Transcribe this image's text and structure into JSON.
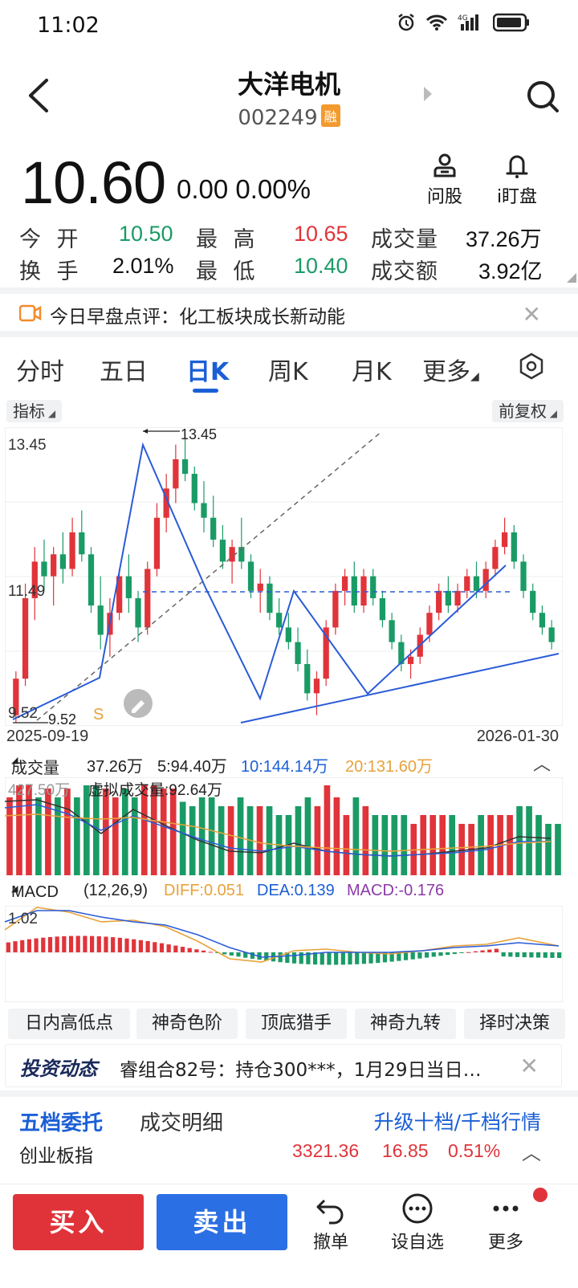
{
  "status": {
    "time": "11:02",
    "network": "4G"
  },
  "header": {
    "title": "大洋电机",
    "code": "002249",
    "badge": "融"
  },
  "quote": {
    "price": "10.60",
    "change": "0.00",
    "change_pct": "0.00%"
  },
  "quick": {
    "ask": "问股",
    "watch": "i盯盘"
  },
  "stats": {
    "open_label": "今 开",
    "open": "10.50",
    "high_label": "最 高",
    "high": "10.65",
    "volume_label": "成交量",
    "volume": "37.26万",
    "turnover_label": "换 手",
    "turnover": "2.01%",
    "low_label": "最 低",
    "low": "10.40",
    "amount_label": "成交额",
    "amount": "3.92亿"
  },
  "news": {
    "text": "今日早盘点评：化工板块成长新动能"
  },
  "tabs": [
    "分时",
    "五日",
    "日K",
    "周K",
    "月K",
    "更多"
  ],
  "chart": {
    "indicator_btn": "指标",
    "adjust_btn": "前复权",
    "high_label": "13.45",
    "high_marker": "13.45",
    "mid_label": "11.49",
    "low_label": "9.52",
    "low_marker": "9.52",
    "signal": "S",
    "start_date": "2025-09-19",
    "end_date": "2026-01-30"
  },
  "volume": {
    "label": "成交量",
    "total": "37.26万",
    "ma5": "5:94.40万",
    "ma10": "10:144.14万",
    "ma20": "20:131.60万",
    "max_label": "427.50万",
    "virtual": "虚拟成交量:92.64万"
  },
  "macd": {
    "label": "MACD",
    "params": "(12,26,9)",
    "diff": "DIFF:0.051",
    "dea": "DEA:0.139",
    "macd": "MACD:-0.176",
    "max_label": "1.02"
  },
  "tools": [
    "日内高低点",
    "神奇色阶",
    "顶底猎手",
    "神奇九转",
    "择时决策"
  ],
  "invest": {
    "logo": "投资动态",
    "text": "睿组合82号：持仓300***，1月29日当日…"
  },
  "orders": {
    "tab1": "五档委托",
    "tab2": "成交明细",
    "link": "升级十档/千档行情"
  },
  "index": {
    "name": "创业板指",
    "value": "3321.36",
    "change": "16.85",
    "pct": "0.51%"
  },
  "bottom": {
    "buy": "买入",
    "sell": "卖出",
    "cancel": "撤单",
    "self_select": "设自选",
    "more": "更多"
  },
  "colors": {
    "up": "#e0343a",
    "down": "#1a9b66",
    "accent": "#1b5fd6"
  },
  "chart_data": {
    "type": "candlestick",
    "x_range": [
      "2025-09-19",
      "2026-01-30"
    ],
    "y_range": [
      9.52,
      13.45
    ],
    "candles": [
      [
        9.6,
        10.2,
        9.5,
        10.1
      ],
      [
        10.1,
        11.4,
        10.0,
        11.2
      ],
      [
        11.2,
        11.9,
        10.9,
        11.7
      ],
      [
        11.7,
        12.0,
        11.3,
        11.5
      ],
      [
        11.5,
        11.9,
        11.1,
        11.8
      ],
      [
        11.8,
        12.1,
        11.4,
        11.6
      ],
      [
        11.6,
        12.3,
        11.5,
        12.1
      ],
      [
        12.1,
        12.4,
        11.7,
        11.8
      ],
      [
        11.8,
        11.9,
        11.0,
        11.1
      ],
      [
        11.1,
        11.5,
        10.5,
        10.7
      ],
      [
        10.7,
        11.2,
        10.4,
        11.0
      ],
      [
        11.0,
        11.6,
        10.9,
        11.5
      ],
      [
        11.5,
        11.8,
        11.0,
        11.2
      ],
      [
        11.2,
        11.3,
        10.6,
        10.8
      ],
      [
        10.8,
        11.7,
        10.7,
        11.6
      ],
      [
        11.6,
        12.5,
        11.5,
        12.3
      ],
      [
        12.3,
        12.9,
        12.1,
        12.7
      ],
      [
        12.7,
        13.3,
        12.5,
        13.1
      ],
      [
        13.1,
        13.45,
        12.8,
        12.9
      ],
      [
        12.9,
        13.0,
        12.4,
        12.5
      ],
      [
        12.5,
        12.8,
        12.1,
        12.3
      ],
      [
        12.3,
        12.6,
        11.9,
        12.0
      ],
      [
        12.0,
        12.2,
        11.6,
        11.7
      ],
      [
        11.7,
        12.0,
        11.4,
        11.9
      ],
      [
        11.9,
        12.3,
        11.6,
        11.7
      ],
      [
        11.7,
        11.8,
        11.2,
        11.3
      ],
      [
        11.3,
        11.6,
        11.0,
        11.4
      ],
      [
        11.4,
        11.5,
        10.9,
        11.0
      ],
      [
        11.0,
        11.2,
        10.7,
        10.8
      ],
      [
        10.8,
        11.0,
        10.5,
        10.6
      ],
      [
        10.6,
        10.8,
        10.2,
        10.3
      ],
      [
        10.3,
        10.5,
        9.8,
        9.9
      ],
      [
        9.9,
        10.2,
        9.6,
        10.1
      ],
      [
        10.1,
        10.9,
        10.0,
        10.8
      ],
      [
        10.8,
        11.4,
        10.7,
        11.3
      ],
      [
        11.3,
        11.6,
        11.1,
        11.5
      ],
      [
        11.5,
        11.7,
        11.0,
        11.1
      ],
      [
        11.1,
        11.6,
        11.0,
        11.5
      ],
      [
        11.5,
        11.6,
        11.1,
        11.2
      ],
      [
        11.2,
        11.3,
        10.8,
        10.9
      ],
      [
        10.9,
        11.0,
        10.5,
        10.6
      ],
      [
        10.6,
        10.7,
        10.2,
        10.3
      ],
      [
        10.3,
        10.5,
        10.1,
        10.4
      ],
      [
        10.4,
        10.8,
        10.3,
        10.7
      ],
      [
        10.7,
        11.1,
        10.6,
        11.0
      ],
      [
        11.0,
        11.4,
        10.9,
        11.3
      ],
      [
        11.3,
        11.5,
        11.0,
        11.1
      ],
      [
        11.1,
        11.4,
        11.0,
        11.3
      ],
      [
        11.3,
        11.6,
        11.2,
        11.5
      ],
      [
        11.5,
        11.7,
        11.2,
        11.3
      ],
      [
        11.3,
        11.7,
        11.2,
        11.6
      ],
      [
        11.6,
        12.0,
        11.5,
        11.9
      ],
      [
        11.9,
        12.3,
        11.8,
        12.1
      ],
      [
        12.1,
        12.2,
        11.6,
        11.7
      ],
      [
        11.7,
        11.8,
        11.2,
        11.3
      ],
      [
        11.3,
        11.4,
        10.9,
        11.0
      ],
      [
        11.0,
        11.1,
        10.7,
        10.8
      ],
      [
        10.8,
        10.9,
        10.5,
        10.6
      ]
    ]
  }
}
